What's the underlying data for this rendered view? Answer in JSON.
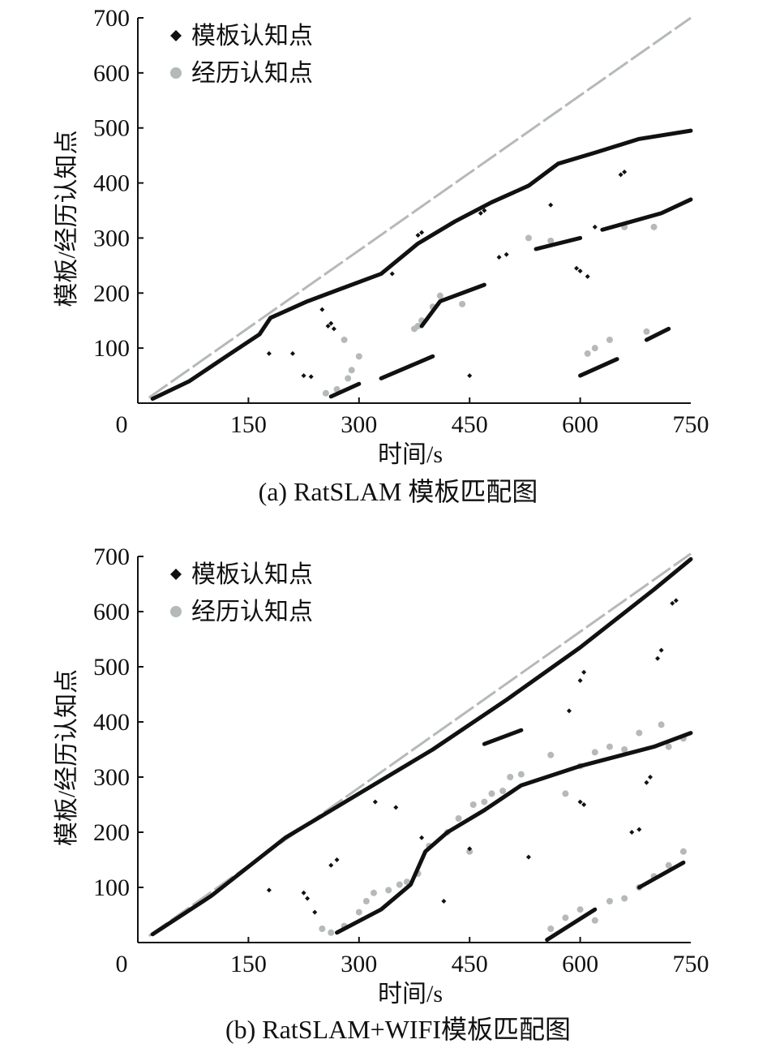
{
  "chart_data": [
    {
      "type": "scatter",
      "caption": "(a) RatSLAM 模板匹配图",
      "xlabel": "时间/s",
      "ylabel": "模板/经历认知点",
      "xlim": [
        0,
        750
      ],
      "ylim": [
        0,
        700
      ],
      "x_ticks": [
        "0",
        "150",
        "300",
        "450",
        "600",
        "750"
      ],
      "y_ticks": [
        "100",
        "200",
        "300",
        "400",
        "500",
        "600",
        "700"
      ],
      "grid": false,
      "legend_position": "top-left",
      "colors": {
        "template": "#111111",
        "experience": "#b5b9b9",
        "diagonal": "#b5b9b9"
      },
      "series": [
        {
          "name": "模板认知点",
          "marker": "diamond",
          "segments": [
            [
              [
                20,
                8
              ],
              [
                70,
                40
              ],
              [
                120,
                85
              ],
              [
                165,
                125
              ],
              [
                180,
                155
              ],
              [
                230,
                185
              ],
              [
                270,
                205
              ],
              [
                330,
                235
              ],
              [
                380,
                290
              ],
              [
                430,
                330
              ],
              [
                480,
                365
              ],
              [
                530,
                395
              ],
              [
                570,
                435
              ],
              [
                620,
                455
              ],
              [
                680,
                480
              ],
              [
                750,
                495
              ]
            ],
            [
              [
                262,
                12
              ],
              [
                300,
                35
              ]
            ],
            [
              [
                330,
                45
              ],
              [
                400,
                85
              ]
            ],
            [
              [
                385,
                140
              ],
              [
                410,
                185
              ],
              [
                470,
                215
              ]
            ],
            [
              [
                540,
                280
              ],
              [
                600,
                300
              ]
            ],
            [
              [
                600,
                50
              ],
              [
                650,
                80
              ]
            ],
            [
              [
                630,
                315
              ],
              [
                710,
                345
              ],
              [
                750,
                370
              ]
            ],
            [
              [
                690,
                115
              ],
              [
                720,
                135
              ]
            ]
          ],
          "points": [
            [
              178,
              90
            ],
            [
              210,
              90
            ],
            [
              225,
              50
            ],
            [
              235,
              48
            ],
            [
              250,
              170
            ],
            [
              258,
              140
            ],
            [
              262,
              145
            ],
            [
              266,
              135
            ],
            [
              345,
              235
            ],
            [
              380,
              305
            ],
            [
              385,
              310
            ],
            [
              450,
              50
            ],
            [
              465,
              345
            ],
            [
              470,
              350
            ],
            [
              490,
              265
            ],
            [
              500,
              270
            ],
            [
              560,
              360
            ],
            [
              595,
              245
            ],
            [
              600,
              240
            ],
            [
              610,
              230
            ],
            [
              620,
              320
            ],
            [
              655,
              415
            ],
            [
              660,
              420
            ]
          ]
        },
        {
          "name": "经历认知点",
          "marker": "circle",
          "segments": [
            [
              [
                15,
                10
              ],
              [
                750,
                700
              ]
            ]
          ],
          "points": [
            [
              255,
              18
            ],
            [
              270,
              25
            ],
            [
              285,
              45
            ],
            [
              290,
              60
            ],
            [
              280,
              115
            ],
            [
              300,
              85
            ],
            [
              375,
              135
            ],
            [
              380,
              140
            ],
            [
              385,
              150
            ],
            [
              400,
              175
            ],
            [
              410,
              195
            ],
            [
              440,
              180
            ],
            [
              530,
              300
            ],
            [
              560,
              295
            ],
            [
              610,
              90
            ],
            [
              620,
              100
            ],
            [
              640,
              115
            ],
            [
              690,
              130
            ],
            [
              660,
              320
            ],
            [
              700,
              320
            ]
          ]
        }
      ]
    },
    {
      "type": "scatter",
      "caption": "(b) RatSLAM+WIFI模板匹配图",
      "xlabel": "时间/s",
      "ylabel": "模板/经历认知点",
      "xlim": [
        0,
        750
      ],
      "ylim": [
        0,
        700
      ],
      "x_ticks": [
        "0",
        "150",
        "300",
        "450",
        "600",
        "750"
      ],
      "y_ticks": [
        "100",
        "200",
        "300",
        "400",
        "500",
        "600",
        "700"
      ],
      "grid": false,
      "legend_position": "top-left",
      "colors": {
        "template": "#111111",
        "experience": "#b5b9b9",
        "diagonal": "#b5b9b9"
      },
      "series": [
        {
          "name": "模板认知点",
          "marker": "diamond",
          "segments": [
            [
              [
                20,
                15
              ],
              [
                100,
                85
              ],
              [
                200,
                190
              ],
              [
                300,
                270
              ],
              [
                400,
                350
              ],
              [
                500,
                440
              ],
              [
                600,
                535
              ],
              [
                700,
                640
              ],
              [
                750,
                695
              ]
            ],
            [
              [
                270,
                18
              ],
              [
                330,
                60
              ],
              [
                370,
                105
              ],
              [
                390,
                165
              ],
              [
                420,
                200
              ],
              [
                470,
                240
              ],
              [
                520,
                285
              ],
              [
                600,
                320
              ],
              [
                700,
                355
              ],
              [
                750,
                380
              ]
            ],
            [
              [
                555,
                5
              ],
              [
                620,
                60
              ]
            ],
            [
              [
                680,
                100
              ],
              [
                740,
                145
              ]
            ],
            [
              [
                470,
                360
              ],
              [
                520,
                385
              ]
            ]
          ],
          "points": [
            [
              178,
              95
            ],
            [
              225,
              90
            ],
            [
              230,
              80
            ],
            [
              240,
              55
            ],
            [
              262,
              140
            ],
            [
              270,
              150
            ],
            [
              322,
              255
            ],
            [
              350,
              245
            ],
            [
              385,
              190
            ],
            [
              415,
              75
            ],
            [
              450,
              170
            ],
            [
              530,
              155
            ],
            [
              585,
              420
            ],
            [
              600,
              475
            ],
            [
              605,
              490
            ],
            [
              600,
              255
            ],
            [
              605,
              250
            ],
            [
              670,
              200
            ],
            [
              680,
              205
            ],
            [
              690,
              290
            ],
            [
              695,
              300
            ],
            [
              705,
              515
            ],
            [
              710,
              530
            ],
            [
              725,
              615
            ],
            [
              730,
              620
            ]
          ]
        },
        {
          "name": "经历认知点",
          "marker": "circle",
          "segments": [
            [
              [
                15,
                12
              ],
              [
                750,
                705
              ]
            ]
          ],
          "points": [
            [
              250,
              25
            ],
            [
              262,
              18
            ],
            [
              280,
              30
            ],
            [
              300,
              55
            ],
            [
              310,
              75
            ],
            [
              320,
              90
            ],
            [
              340,
              95
            ],
            [
              355,
              105
            ],
            [
              365,
              110
            ],
            [
              380,
              125
            ],
            [
              395,
              175
            ],
            [
              420,
              200
            ],
            [
              435,
              225
            ],
            [
              450,
              165
            ],
            [
              455,
              250
            ],
            [
              470,
              255
            ],
            [
              480,
              270
            ],
            [
              495,
              275
            ],
            [
              505,
              300
            ],
            [
              520,
              305
            ],
            [
              560,
              340
            ],
            [
              580,
              270
            ],
            [
              600,
              320
            ],
            [
              620,
              345
            ],
            [
              640,
              355
            ],
            [
              660,
              350
            ],
            [
              680,
              380
            ],
            [
              710,
              395
            ],
            [
              720,
              355
            ],
            [
              740,
              370
            ],
            [
              560,
              25
            ],
            [
              580,
              45
            ],
            [
              600,
              60
            ],
            [
              620,
              40
            ],
            [
              640,
              75
            ],
            [
              660,
              80
            ],
            [
              680,
              100
            ],
            [
              700,
              120
            ],
            [
              720,
              140
            ],
            [
              740,
              165
            ]
          ]
        }
      ]
    }
  ]
}
